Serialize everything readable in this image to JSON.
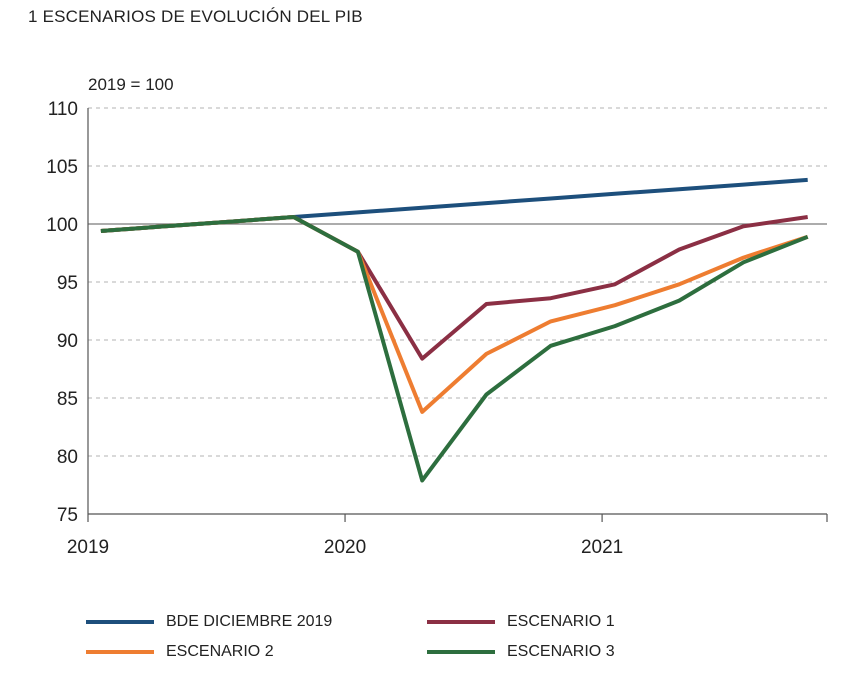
{
  "title": "1  ESCENARIOS DE EVOLUCIÓN DEL PIB",
  "chart_data": {
    "type": "line",
    "title": "1  ESCENARIOS DE EVOLUCIÓN DEL PIB",
    "ylabel": "2019 = 100",
    "xlabel": "",
    "ylim": [
      75,
      110
    ],
    "yticks": [
      110,
      105,
      100,
      95,
      90,
      85,
      80,
      75
    ],
    "xlim": [
      0,
      11.5
    ],
    "xticks": [
      {
        "value": 0,
        "label": "2019"
      },
      {
        "value": 4,
        "label": "2020"
      },
      {
        "value": 8,
        "label": "2021"
      }
    ],
    "reference_line": 100,
    "grid": "horizontal dashed",
    "legend_position": "bottom",
    "x": [
      0.2,
      1.2,
      2.2,
      3.2,
      4.2,
      5.2,
      6.2,
      7.2,
      8.2,
      9.2,
      10.2,
      11.2
    ],
    "series": [
      {
        "name": "BDE DICIEMBRE 2019",
        "color": "#1d4f7c",
        "values": [
          99.4,
          99.8,
          100.2,
          100.6,
          101.0,
          101.4,
          101.8,
          102.2,
          102.6,
          103.0,
          103.4,
          103.8
        ]
      },
      {
        "name": "ESCENARIO 1",
        "color": "#8b2f44",
        "values": [
          99.4,
          99.8,
          100.2,
          100.6,
          97.6,
          88.4,
          93.1,
          93.6,
          94.8,
          97.8,
          99.8,
          100.6
        ]
      },
      {
        "name": "ESCENARIO 2",
        "color": "#ee7d31",
        "values": [
          99.4,
          99.8,
          100.2,
          100.6,
          97.6,
          83.8,
          88.8,
          91.6,
          93.0,
          94.8,
          97.1,
          98.9
        ]
      },
      {
        "name": "ESCENARIO 3",
        "color": "#2d6e3e",
        "values": [
          99.4,
          99.8,
          100.2,
          100.6,
          97.6,
          77.9,
          85.3,
          89.5,
          91.2,
          93.4,
          96.7,
          98.9
        ]
      }
    ]
  },
  "legend": [
    {
      "label": "BDE DICIEMBRE 2019",
      "color": "#1d4f7c"
    },
    {
      "label": "ESCENARIO 1",
      "color": "#8b2f44"
    },
    {
      "label": "ESCENARIO 2",
      "color": "#ee7d31"
    },
    {
      "label": "ESCENARIO 3",
      "color": "#2d6e3e"
    }
  ]
}
